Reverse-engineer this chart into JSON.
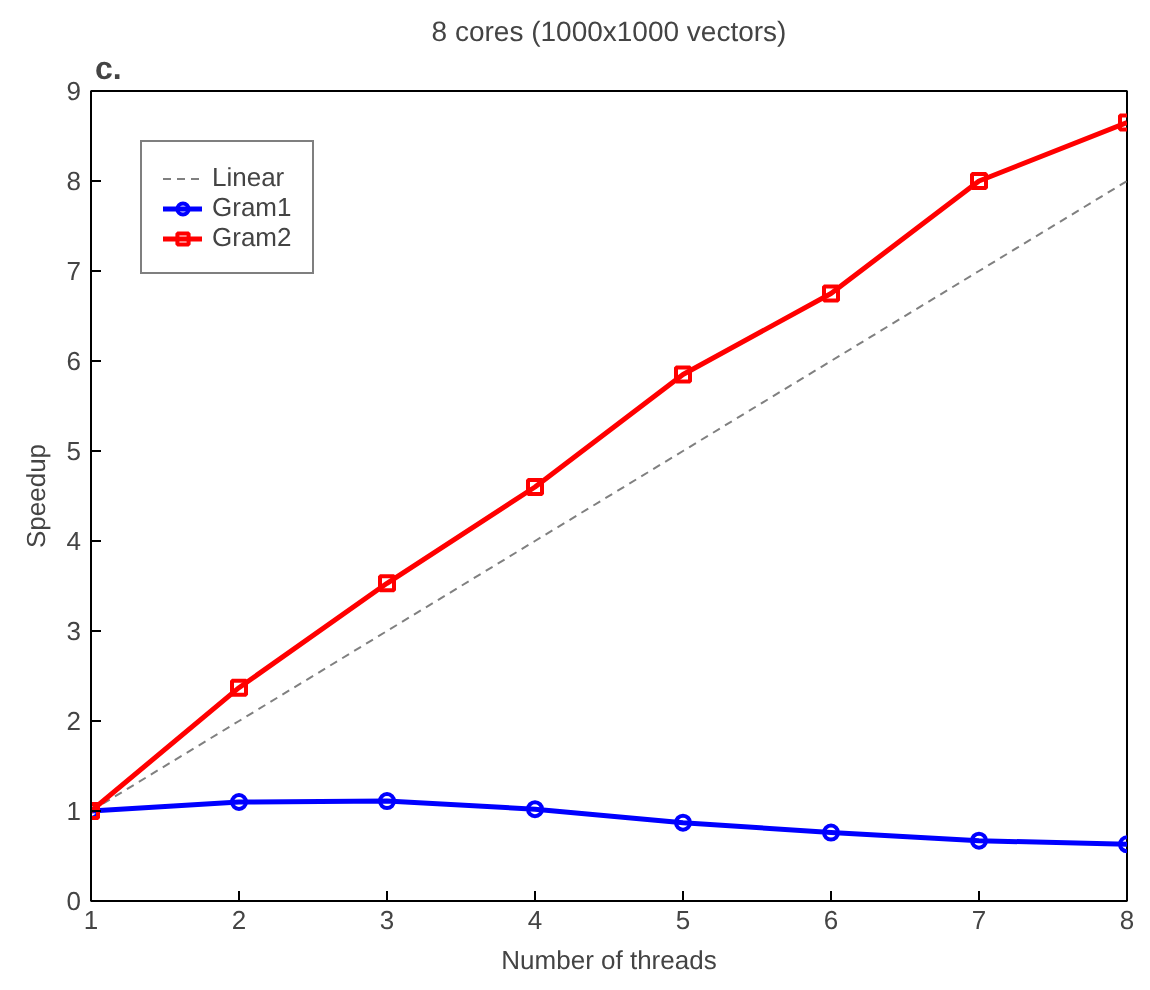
{
  "chart_data": {
    "type": "line",
    "title": "8 cores (1000x1000 vectors)",
    "xlabel": "Number of threads",
    "ylabel": "Speedup",
    "x": [
      1,
      2,
      3,
      4,
      5,
      6,
      7,
      8
    ],
    "series": [
      {
        "name": "Linear",
        "color": "#808080",
        "values": [
          1,
          2,
          3,
          4,
          5,
          6,
          7,
          8
        ],
        "line_style": "dashed",
        "marker": "none"
      },
      {
        "name": "Gram1",
        "color": "#0000ff",
        "values": [
          1.0,
          1.1,
          1.11,
          1.02,
          0.87,
          0.76,
          0.67,
          0.63
        ],
        "marker": "circle"
      },
      {
        "name": "Gram2",
        "color": "#ff0000",
        "values": [
          1.0,
          2.37,
          3.53,
          4.6,
          5.85,
          6.75,
          8.0,
          8.65
        ],
        "marker": "square"
      }
    ],
    "xlim": [
      1,
      8
    ],
    "ylim": [
      0,
      9
    ],
    "xticks": [
      1,
      2,
      3,
      4,
      5,
      6,
      7,
      8
    ],
    "yticks": [
      0,
      1,
      2,
      3,
      4,
      5,
      6,
      7,
      8,
      9
    ],
    "grid": false,
    "legend": "top left",
    "annotations": [
      "c."
    ]
  }
}
